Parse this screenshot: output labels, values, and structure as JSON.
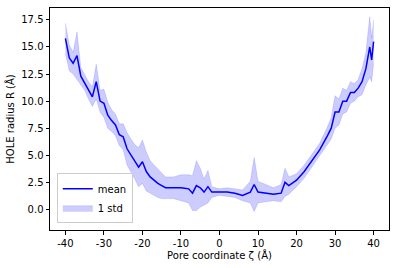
{
  "chart_data": {
    "type": "line",
    "x_label": "Pore coordinate ζ (Å)",
    "y_label": "HOLE radius R (Å)",
    "x": [
      -40,
      -39,
      -38,
      -37,
      -36,
      -35,
      -34,
      -33,
      -32,
      -31,
      -30,
      -29,
      -28,
      -27,
      -26,
      -25,
      -24,
      -23,
      -22,
      -21,
      -20,
      -19,
      -18,
      -17,
      -16,
      -15,
      -14,
      -12,
      -10,
      -8,
      -7,
      -6,
      -5,
      -4,
      -3,
      -2,
      0,
      2,
      4,
      6,
      8,
      9,
      10,
      12,
      14,
      16,
      17,
      18,
      20,
      22,
      24,
      26,
      28,
      29,
      30,
      31,
      32,
      33,
      34,
      35,
      36,
      37,
      38,
      39,
      39.5,
      40
    ],
    "series": [
      {
        "name": "mean",
        "color": "#0000ff",
        "values": [
          15.8,
          14.0,
          13.5,
          14.2,
          12.3,
          11.7,
          11.0,
          10.4,
          11.8,
          10.0,
          9.8,
          8.7,
          8.2,
          7.8,
          6.9,
          6.7,
          5.6,
          5.0,
          4.4,
          3.9,
          4.4,
          3.5,
          3.0,
          2.7,
          2.4,
          2.2,
          2.0,
          2.0,
          2.0,
          1.9,
          1.5,
          2.2,
          2.0,
          1.6,
          2.1,
          1.6,
          1.6,
          1.6,
          1.5,
          1.3,
          1.6,
          2.3,
          1.6,
          1.5,
          1.4,
          1.5,
          2.5,
          2.2,
          2.7,
          3.5,
          4.5,
          5.5,
          6.8,
          7.5,
          9.0,
          9.0,
          10.0,
          10.0,
          10.8,
          10.8,
          11.2,
          11.8,
          13.0,
          15.0,
          13.8,
          15.5
        ],
        "error": {
          "name": "1 std",
          "color": "#0000ff",
          "values": [
            1.4,
            1.2,
            1.0,
            2.2,
            0.8,
            0.7,
            0.8,
            0.9,
            1.6,
            1.0,
            1.3,
            1.2,
            1.0,
            1.0,
            1.0,
            1.2,
            1.5,
            1.5,
            1.6,
            1.8,
            2.0,
            1.8,
            1.5,
            1.4,
            1.3,
            1.2,
            1.0,
            1.0,
            1.2,
            1.3,
            1.6,
            2.3,
            1.8,
            1.2,
            1.5,
            0.5,
            0.3,
            0.4,
            0.4,
            0.5,
            1.0,
            2.5,
            1.0,
            0.8,
            0.6,
            0.8,
            1.3,
            0.8,
            0.6,
            0.6,
            0.6,
            0.6,
            0.8,
            1.0,
            1.5,
            1.2,
            1.2,
            1.0,
            1.0,
            0.8,
            0.8,
            1.2,
            1.5,
            2.8,
            2.0,
            2.0
          ]
        }
      }
    ],
    "xlim": [
      -44,
      44
    ],
    "ylim": [
      -1.9,
      18.6
    ],
    "xticks": [
      -40,
      -30,
      -20,
      -10,
      0,
      10,
      20,
      30,
      40
    ],
    "yticks": [
      {
        "value": 0,
        "label": "0.0"
      },
      2.5,
      {
        "value": 5,
        "label": "5.0"
      },
      7.5,
      {
        "value": 10,
        "label": "10.0"
      },
      12.5,
      {
        "value": 15,
        "label": "15.0"
      },
      17.5
    ],
    "grid": false,
    "legend": "lower left"
  }
}
